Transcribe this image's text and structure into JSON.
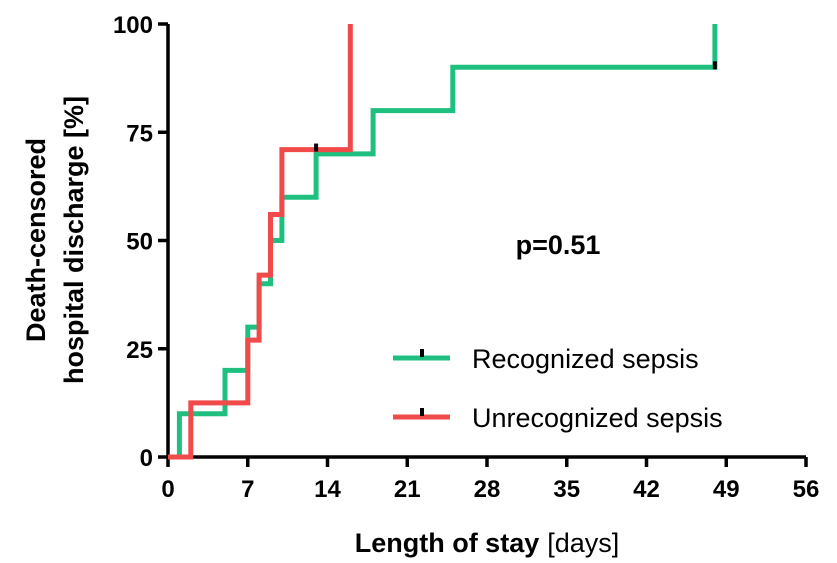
{
  "chart_data": {
    "type": "line",
    "step": true,
    "annotation": "p=0.51",
    "xlabel": {
      "bold": "Length of stay",
      "normal": "[days]"
    },
    "ylabel": {
      "line1": "Death-censored",
      "line2": "hospital discharge [%]"
    },
    "xlim": [
      0,
      56
    ],
    "ylim": [
      0,
      100
    ],
    "x_ticks": [
      0,
      7,
      14,
      21,
      28,
      35,
      42,
      49,
      56
    ],
    "y_ticks": [
      0,
      25,
      50,
      75,
      100
    ],
    "legend_position": "bottom-right",
    "series": [
      {
        "name": "Recognized sepsis",
        "color": "#1fc07f",
        "points": [
          [
            0,
            0
          ],
          [
            1,
            0
          ],
          [
            1,
            10
          ],
          [
            5,
            10
          ],
          [
            5,
            20
          ],
          [
            7,
            20
          ],
          [
            7,
            30
          ],
          [
            8,
            30
          ],
          [
            8,
            40
          ],
          [
            9,
            40
          ],
          [
            9,
            50
          ],
          [
            10,
            50
          ],
          [
            10,
            60
          ],
          [
            13,
            60
          ],
          [
            13,
            70
          ],
          [
            18,
            70
          ],
          [
            18,
            80
          ],
          [
            25,
            80
          ],
          [
            25,
            90
          ],
          [
            48,
            90
          ],
          [
            48,
            100
          ]
        ],
        "censor_marks": [
          [
            48,
            90
          ]
        ]
      },
      {
        "name": "Unrecognized sepsis",
        "color": "#f04a4a",
        "points": [
          [
            0,
            0
          ],
          [
            2,
            0
          ],
          [
            2,
            12.5
          ],
          [
            7,
            12.5
          ],
          [
            7,
            27
          ],
          [
            8,
            27
          ],
          [
            8,
            42
          ],
          [
            9,
            42
          ],
          [
            9,
            56
          ],
          [
            10,
            56
          ],
          [
            10,
            71
          ],
          [
            16,
            71
          ],
          [
            16,
            100
          ]
        ],
        "censor_marks": [
          [
            13,
            71
          ]
        ]
      }
    ]
  }
}
